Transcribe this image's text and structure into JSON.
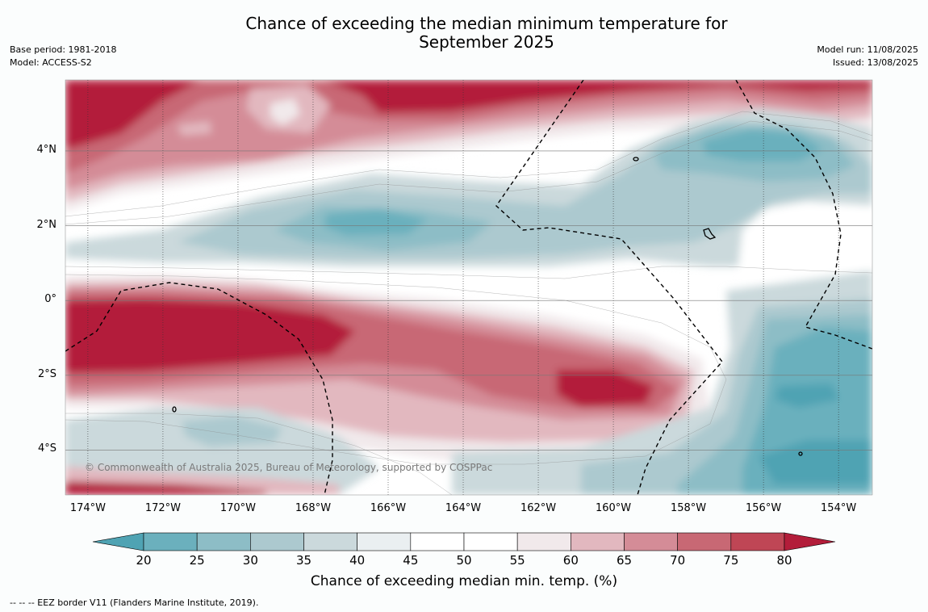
{
  "title_line1": "Chance of exceeding the median minimum temperature for",
  "title_line2": "September 2025",
  "meta_left": {
    "base_period": "Base period: 1981-2018",
    "model": "Model: ACCESS-S2"
  },
  "meta_right": {
    "model_run": "Model run: 11/08/2025",
    "issued": "Issued: 13/08/2025"
  },
  "map": {
    "lon_range": [
      -174.6,
      -153.1
    ],
    "lat_range": [
      -5.2,
      5.9
    ],
    "lat_ticks": [
      {
        "value": 4,
        "label": "4°N"
      },
      {
        "value": 2,
        "label": "2°N"
      },
      {
        "value": 0,
        "label": "0°"
      },
      {
        "value": -2,
        "label": "2°S"
      },
      {
        "value": -4,
        "label": "4°S"
      }
    ],
    "lon_ticks": [
      {
        "value": -174,
        "label": "174°W"
      },
      {
        "value": -172,
        "label": "172°W"
      },
      {
        "value": -170,
        "label": "170°W"
      },
      {
        "value": -168,
        "label": "168°W"
      },
      {
        "value": -166,
        "label": "166°W"
      },
      {
        "value": -164,
        "label": "164°W"
      },
      {
        "value": -162,
        "label": "162°W"
      },
      {
        "value": -160,
        "label": "160°W"
      },
      {
        "value": -158,
        "label": "158°W"
      },
      {
        "value": -156,
        "label": "156°W"
      },
      {
        "value": -154,
        "label": "154°W"
      }
    ],
    "copyright": "© Commonwealth of Australia 2025, Bureau of Meteorology, supported by COSPPac"
  },
  "colorbar": {
    "label": "Chance of exceeding median min. temp. (%)",
    "ticks": [
      "20",
      "25",
      "30",
      "35",
      "40",
      "45",
      "50",
      "55",
      "60",
      "65",
      "70",
      "75",
      "80"
    ],
    "colors": [
      "#4fa3b3",
      "#6bb0bd",
      "#8dbdc6",
      "#acc9cf",
      "#cbd9dc",
      "#eaeff1",
      "#ffffff",
      "#ffffff",
      "#f1e9eb",
      "#e2b8bf",
      "#d48c97",
      "#c86874",
      "#bf4655",
      "#b31d3a"
    ]
  },
  "footnote": "--  --  -- EEZ border V11 (Flanders Marine Institute, 2019)."
}
